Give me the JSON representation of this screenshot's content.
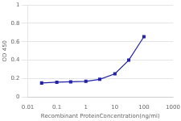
{
  "chart_data": {
    "type": "line",
    "x": [
      0.03,
      0.1,
      0.3,
      1,
      3,
      10,
      30,
      100
    ],
    "values": [
      0.152,
      0.16,
      0.165,
      0.17,
      0.192,
      0.252,
      0.4,
      0.655
    ],
    "color": "#2222aa",
    "marker": "square",
    "xlabel": "Recombinant ProteinConcentration(ng/ml)",
    "ylabel": "OD 450",
    "log": "x",
    "xlim": [
      0.01,
      1000
    ],
    "xticks": [
      0.01,
      0.1,
      1,
      10,
      100,
      1000
    ],
    "ylim": [
      0,
      1
    ],
    "yticks": [
      0,
      0.2,
      0.4,
      0.6,
      0.8,
      1
    ],
    "grid": "y"
  }
}
